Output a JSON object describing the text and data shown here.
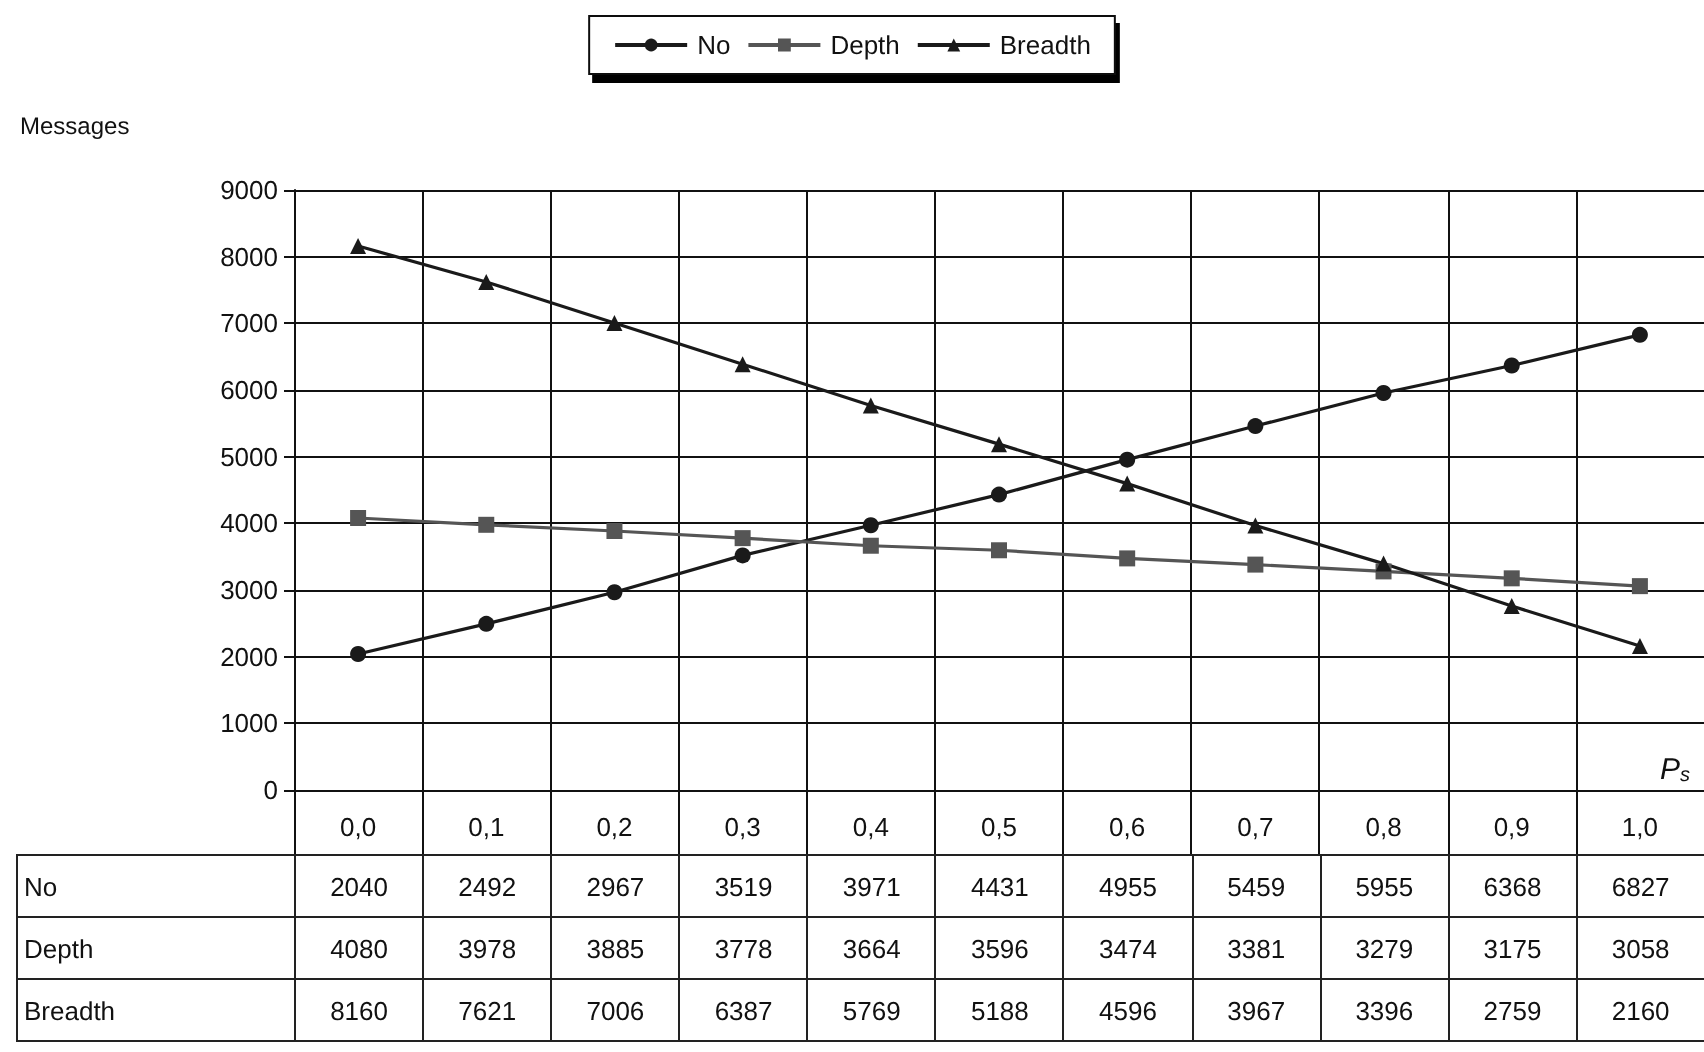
{
  "chart_data": {
    "type": "line",
    "ylabel": "Messages",
    "xlabel": "P$_{s}$",
    "categories": [
      "0,0",
      "0,1",
      "0,2",
      "0,3",
      "0,4",
      "0,5",
      "0,6",
      "0,7",
      "0,8",
      "0,9",
      "1,0"
    ],
    "series": [
      {
        "name": "No",
        "color": "#1a1a1a",
        "marker": "circle",
        "values": [
          2040,
          2492,
          2967,
          3519,
          3971,
          4431,
          4955,
          5459,
          5955,
          6368,
          6827
        ]
      },
      {
        "name": "Depth",
        "color": "#555555",
        "marker": "square",
        "values": [
          4080,
          3978,
          3885,
          3778,
          3664,
          3596,
          3474,
          3381,
          3279,
          3175,
          3058
        ]
      },
      {
        "name": "Breadth",
        "color": "#1a1a1a",
        "marker": "triangle",
        "values": [
          8160,
          7621,
          7006,
          6387,
          5769,
          5188,
          4596,
          3967,
          3396,
          2759,
          2160
        ]
      }
    ],
    "ylim": [
      0,
      9000
    ],
    "yticks": [
      0,
      1000,
      2000,
      3000,
      4000,
      5000,
      6000,
      7000,
      8000,
      9000
    ],
    "grid": true,
    "legend": "top",
    "data_labels": true,
    "line_style": "solid"
  }
}
